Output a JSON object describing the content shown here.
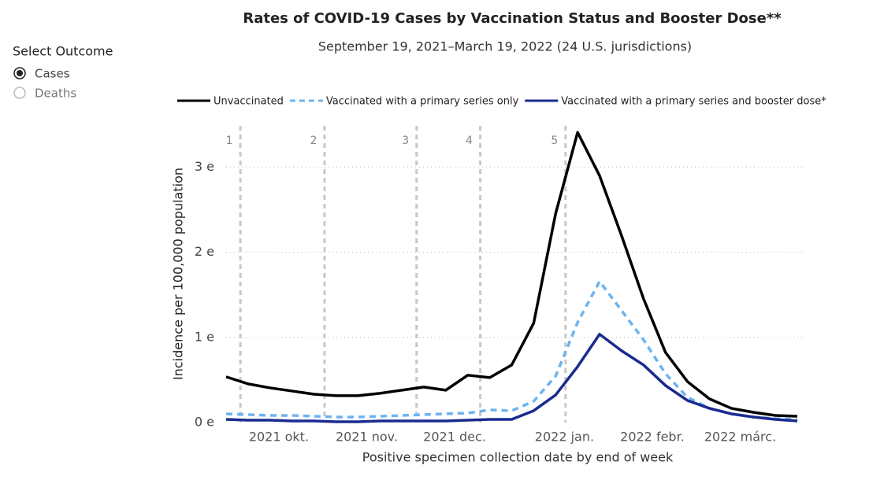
{
  "slicer": {
    "title": "Select Outcome",
    "options": [
      "Cases",
      "Deaths"
    ],
    "selected": "Cases"
  },
  "chart_data": {
    "type": "line",
    "title": "Rates of COVID-19 Cases by Vaccination Status and Booster Dose**",
    "subtitle": "September 19, 2021–March 19, 2022 (24 U.S. jurisdictions)",
    "x_label": "Positive specimen collection date by end of week",
    "y_label": "Incidence per 100,000 population",
    "categories": [
      null,
      null,
      "2021 okt.",
      null,
      null,
      null,
      "2021 nov.",
      null,
      null,
      null,
      "2021 dec.",
      null,
      null,
      null,
      null,
      "2022 jan.",
      null,
      null,
      null,
      "2022 febr.",
      null,
      null,
      null,
      "2022 márc.",
      null,
      null,
      null
    ],
    "ylim": [
      0,
      3400
    ],
    "yticks": [
      {
        "value": 0,
        "label": "0 e"
      },
      {
        "value": 1000,
        "label": "1 e"
      },
      {
        "value": 2000,
        "label": "2 e"
      },
      {
        "value": 3000,
        "label": "3 e"
      }
    ],
    "grid": true,
    "legend": "top",
    "annotations": [
      "1",
      "2",
      "3",
      "4",
      "5"
    ],
    "series": [
      {
        "name": "Unvaccinated",
        "color": "#000000",
        "dash": false,
        "values": [
          537,
          454,
          407,
          370,
          333,
          315,
          315,
          343,
          380,
          417,
          380,
          556,
          528,
          676,
          1167,
          2454,
          3407,
          2898,
          2194,
          1454,
          824,
          481,
          278,
          167,
          120,
          83,
          74
        ]
      },
      {
        "name": "Vaccinated with a primary series only",
        "color": "#6cb4f0",
        "dash": true,
        "values": [
          102,
          93,
          83,
          83,
          74,
          65,
          65,
          74,
          83,
          93,
          102,
          111,
          148,
          139,
          250,
          546,
          1176,
          1657,
          1315,
          972,
          574,
          296,
          167,
          102,
          65,
          46,
          37
        ]
      },
      {
        "name": "Vaccinated with a primary series and booster dose*",
        "color": "#1a2b8f",
        "dash": false,
        "values": [
          37,
          28,
          28,
          19,
          19,
          9,
          9,
          19,
          19,
          19,
          19,
          28,
          37,
          37,
          139,
          324,
          657,
          1037,
          843,
          676,
          435,
          259,
          167,
          102,
          65,
          37,
          19
        ]
      }
    ]
  }
}
